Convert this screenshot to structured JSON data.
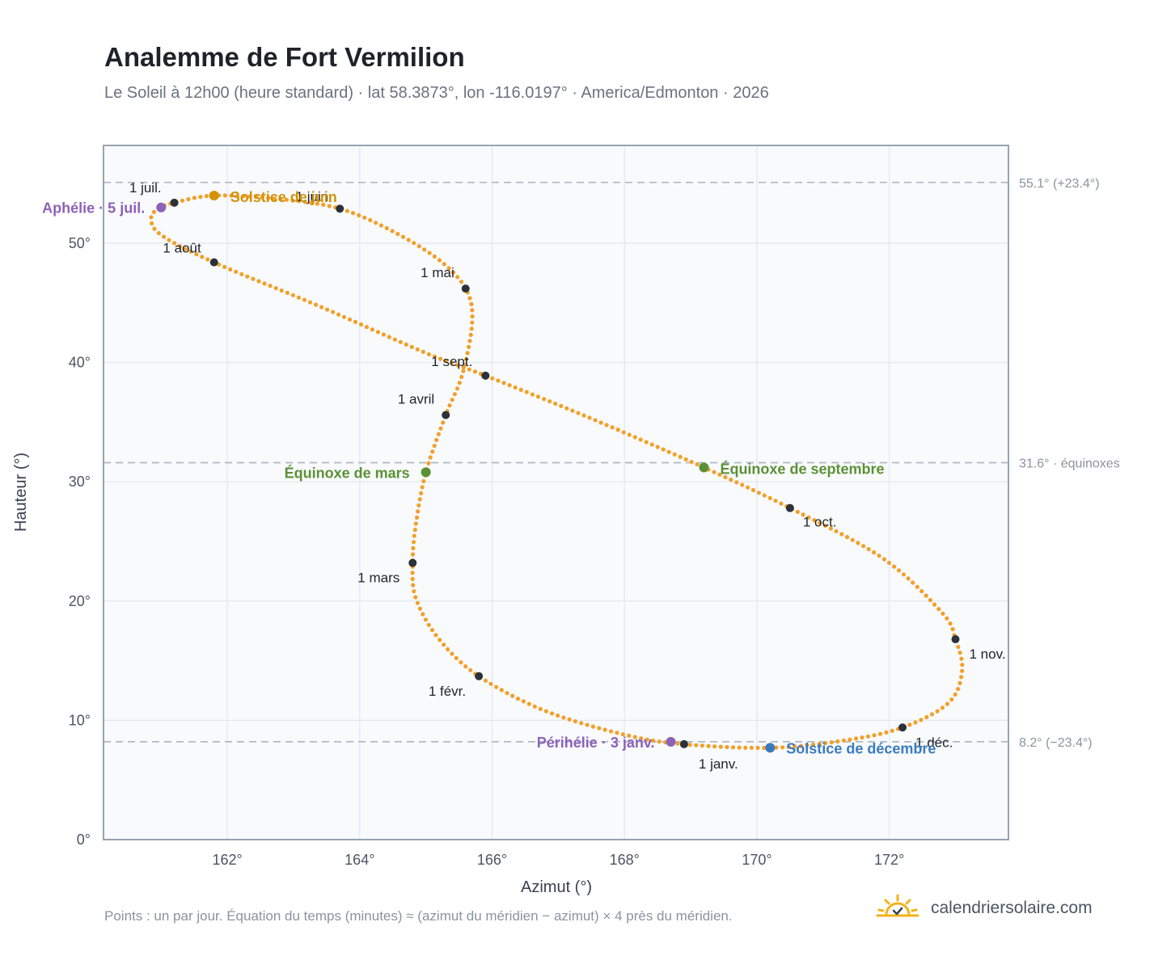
{
  "title": "Analemme de Fort Vermilion",
  "subtitle": "Le Soleil à 12h00 (heure standard) · lat 58.3873°, lon -116.0197° · America/Edmonton · 2026",
  "footnote": "Points : un par jour. Équation du temps (minutes) ≈ (azimut du méridien − azimut) × 4 près du méridien.",
  "brand": {
    "name": "calendriersolaire.com",
    "logo_icon": "sun-check-icon"
  },
  "colors": {
    "curve": "#f2a02a",
    "month_marker": "#2d3138",
    "solstice_june": "#d4910a",
    "solstice_december": "#3a7bbf",
    "equinox": "#5b9134",
    "apsis": "#8e62b8",
    "reference_line": "#a9b5c2",
    "plot_background": "#f8fafc",
    "grid": "#e3e8ef",
    "plot_border": "#97a3b1"
  },
  "chart_data": {
    "type": "scatter",
    "xlabel": "Azimut (°)",
    "ylabel": "Hauteur (°)",
    "xlim": [
      160.13,
      173.8
    ],
    "ylim": [
      0,
      58.2
    ],
    "x_ticks": [
      162,
      164,
      166,
      168,
      170,
      172
    ],
    "x_tick_labels": [
      "162°",
      "164°",
      "166°",
      "168°",
      "170°",
      "172°"
    ],
    "y_ticks": [
      0,
      10,
      20,
      30,
      40,
      50
    ],
    "y_tick_labels": [
      "0°",
      "10°",
      "20°",
      "30°",
      "40°",
      "50°"
    ],
    "grid": true,
    "reference_lines": [
      {
        "y": 55.1,
        "label": "55.1° (+23.4°)"
      },
      {
        "y": 31.6,
        "label": "31.6° · équinoxes"
      },
      {
        "y": 8.2,
        "label": "8.2° (−23.4°)"
      }
    ],
    "month_markers": [
      {
        "label": "1 janv.",
        "azimuth": 168.9,
        "altitude": 8.0
      },
      {
        "label": "1 févr.",
        "azimuth": 165.8,
        "altitude": 13.7
      },
      {
        "label": "1 mars",
        "azimuth": 164.8,
        "altitude": 23.2
      },
      {
        "label": "1 avril",
        "azimuth": 165.3,
        "altitude": 35.6
      },
      {
        "label": "1 mai",
        "azimuth": 165.6,
        "altitude": 46.2
      },
      {
        "label": "1 juin",
        "azimuth": 163.7,
        "altitude": 52.9
      },
      {
        "label": "1 juil.",
        "azimuth": 161.2,
        "altitude": 53.4
      },
      {
        "label": "1 août",
        "azimuth": 161.8,
        "altitude": 48.4
      },
      {
        "label": "1 sept.",
        "azimuth": 165.9,
        "altitude": 38.9
      },
      {
        "label": "1 oct.",
        "azimuth": 170.5,
        "altitude": 27.8
      },
      {
        "label": "1 nov.",
        "azimuth": 173.0,
        "altitude": 16.8
      },
      {
        "label": "1 déc.",
        "azimuth": 172.2,
        "altitude": 9.4
      }
    ],
    "events": [
      {
        "label": "Solstice de juin",
        "azimuth": 161.8,
        "altitude": 54.0,
        "kind": "solstice_june"
      },
      {
        "label": "Aphélie · 5 juil.",
        "azimuth": 161.0,
        "altitude": 53.0,
        "kind": "apsis"
      },
      {
        "label": "Équinoxe de mars",
        "azimuth": 165.0,
        "altitude": 30.8,
        "kind": "equinox"
      },
      {
        "label": "Équinoxe de septembre",
        "azimuth": 169.2,
        "altitude": 31.2,
        "kind": "equinox"
      },
      {
        "label": "Périhélie · 3 janv.",
        "azimuth": 168.7,
        "altitude": 8.2,
        "kind": "apsis"
      },
      {
        "label": "Solstice de décembre",
        "azimuth": 170.2,
        "altitude": 7.7,
        "kind": "solstice_december"
      }
    ],
    "curve_path": [
      {
        "azimuth": 170.2,
        "altitude": 7.7
      },
      {
        "azimuth": 168.9,
        "altitude": 8.0
      },
      {
        "azimuth": 168.0,
        "altitude": 8.8
      },
      {
        "azimuth": 166.8,
        "altitude": 10.8
      },
      {
        "azimuth": 165.8,
        "altitude": 13.7
      },
      {
        "azimuth": 165.2,
        "altitude": 16.8
      },
      {
        "azimuth": 164.85,
        "altitude": 20.2
      },
      {
        "azimuth": 164.8,
        "altitude": 23.2
      },
      {
        "azimuth": 164.85,
        "altitude": 26.5
      },
      {
        "azimuth": 165.0,
        "altitude": 30.8
      },
      {
        "azimuth": 165.3,
        "altitude": 35.6
      },
      {
        "azimuth": 165.55,
        "altitude": 39.0
      },
      {
        "azimuth": 165.7,
        "altitude": 43.5
      },
      {
        "azimuth": 165.6,
        "altitude": 46.2
      },
      {
        "azimuth": 165.2,
        "altitude": 48.6
      },
      {
        "azimuth": 164.5,
        "altitude": 51.0
      },
      {
        "azimuth": 163.7,
        "altitude": 52.9
      },
      {
        "azimuth": 162.8,
        "altitude": 53.7
      },
      {
        "azimuth": 161.8,
        "altitude": 54.0
      },
      {
        "azimuth": 161.2,
        "altitude": 53.4
      },
      {
        "azimuth": 161.0,
        "altitude": 53.0
      },
      {
        "azimuth": 160.85,
        "altitude": 52.2
      },
      {
        "azimuth": 161.0,
        "altitude": 50.7
      },
      {
        "azimuth": 161.8,
        "altitude": 48.4
      },
      {
        "azimuth": 163.4,
        "altitude": 44.7
      },
      {
        "azimuth": 165.0,
        "altitude": 40.8
      },
      {
        "azimuth": 165.9,
        "altitude": 38.9
      },
      {
        "azimuth": 167.5,
        "altitude": 35.3
      },
      {
        "azimuth": 169.2,
        "altitude": 31.2
      },
      {
        "azimuth": 170.5,
        "altitude": 27.8
      },
      {
        "azimuth": 171.9,
        "altitude": 23.6
      },
      {
        "azimuth": 172.8,
        "altitude": 19.0
      },
      {
        "azimuth": 173.0,
        "altitude": 16.8
      },
      {
        "azimuth": 173.1,
        "altitude": 14.2
      },
      {
        "azimuth": 172.9,
        "altitude": 11.5
      },
      {
        "azimuth": 172.2,
        "altitude": 9.4
      },
      {
        "azimuth": 171.3,
        "altitude": 8.3
      },
      {
        "azimuth": 170.2,
        "altitude": 7.7
      }
    ]
  }
}
